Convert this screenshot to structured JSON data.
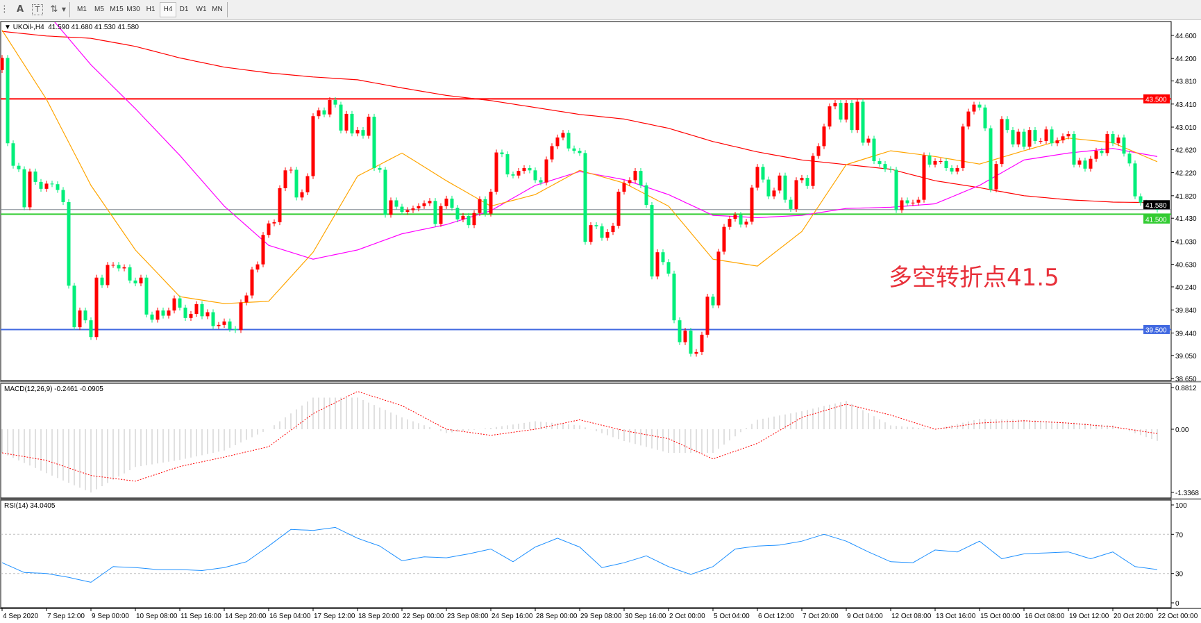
{
  "toolbar": {
    "icons": [
      "grid-template-icon",
      "text-icon",
      "text-label-icon",
      "arrows-icon"
    ],
    "text_label": "A",
    "timeframes": [
      "M1",
      "M5",
      "M15",
      "M30",
      "H1",
      "H4",
      "D1",
      "W1",
      "MN"
    ],
    "active_timeframe": "H4"
  },
  "chart": {
    "header": "UKOil-,H4  41.590 41.680 41.530 41.580",
    "symbol": "UKOil-",
    "timeframe": "H4",
    "ohlc": {
      "open": 41.59,
      "high": 41.68,
      "low": 41.53,
      "close": 41.58
    },
    "annotation": "多空转折点41.5",
    "colors": {
      "bull": "#ff0000",
      "bear": "#00ee7a",
      "ma_slow": "#ff0000",
      "ma_mid": "#ff00ff",
      "ma_fast": "#ffa500",
      "resistance": "#ff0000",
      "pivot": "#33cc33",
      "support": "#4169e1",
      "bid": "#808890"
    },
    "price_axis_labels": [
      "44.600",
      "44.200",
      "43.810",
      "43.410",
      "43.010",
      "42.620",
      "42.220",
      "41.820",
      "41.430",
      "41.030",
      "40.630",
      "40.240",
      "39.840",
      "39.440",
      "39.050",
      "38.650"
    ],
    "levels": [
      {
        "label": "43.500",
        "value": 43.5,
        "color": "#ff0000"
      },
      {
        "label": "41.580",
        "value": 41.58,
        "color": "#000000"
      },
      {
        "label": "41.500",
        "value": 41.5,
        "color": "#33cc33"
      },
      {
        "label": "39.500",
        "value": 39.5,
        "color": "#4169e1"
      }
    ],
    "time_labels": [
      "4 Sep 2020",
      "7 Sep 12:00",
      "9 Sep 00:00",
      "10 Sep 08:00",
      "11 Sep 16:00",
      "14 Sep 20:00",
      "16 Sep 04:00",
      "17 Sep 12:00",
      "18 Sep 20:00",
      "22 Sep 00:00",
      "23 Sep 08:00",
      "24 Sep 16:00",
      "28 Sep 00:00",
      "29 Sep 08:00",
      "30 Sep 16:00",
      "2 Oct 00:00",
      "5 Oct 04:00",
      "6 Oct 12:00",
      "7 Oct 20:00",
      "9 Oct 04:00",
      "12 Oct 08:00",
      "13 Oct 16:00",
      "15 Oct 00:00",
      "16 Oct 08:00",
      "19 Oct 12:00",
      "20 Oct 20:00",
      "22 Oct 00:00"
    ]
  },
  "chart_data": {
    "type": "candlestick",
    "ylim": [
      38.65,
      44.6
    ],
    "closes": [
      44.21,
      42.73,
      42.34,
      42.28,
      41.62,
      42.24,
      42.06,
      41.94,
      42.03,
      42.02,
      41.92,
      41.71,
      40.26,
      39.54,
      39.83,
      39.66,
      39.37,
      40.4,
      40.27,
      40.62,
      40.62,
      40.56,
      40.58,
      40.35,
      40.3,
      40.4,
      39.76,
      39.67,
      39.83,
      39.74,
      39.83,
      40.04,
      39.88,
      39.7,
      39.77,
      39.94,
      39.73,
      39.8,
      39.56,
      39.58,
      39.64,
      39.51,
      39.49,
      39.97,
      40.09,
      40.54,
      40.63,
      41.14,
      41.34,
      41.36,
      41.95,
      42.26,
      42.27,
      41.79,
      41.88,
      42.16,
      43.2,
      43.3,
      43.23,
      43.48,
      43.4,
      42.95,
      43.24,
      42.9,
      42.96,
      42.86,
      43.19,
      42.3,
      42.27,
      41.49,
      41.74,
      41.63,
      41.54,
      41.57,
      41.6,
      41.64,
      41.69,
      41.73,
      41.33,
      41.64,
      41.77,
      41.61,
      41.41,
      41.47,
      41.31,
      41.52,
      41.76,
      41.51,
      41.89,
      42.57,
      42.54,
      42.19,
      42.17,
      42.25,
      42.3,
      42.26,
      42.09,
      42.05,
      42.45,
      42.68,
      42.83,
      42.91,
      42.64,
      42.6,
      42.56,
      41.02,
      41.31,
      41.29,
      41.09,
      41.19,
      41.3,
      41.89,
      42.04,
      42.09,
      42.25,
      42.0,
      41.66,
      40.42,
      40.84,
      40.67,
      40.47,
      39.66,
      39.28,
      39.48,
      39.08,
      39.11,
      39.41,
      40.07,
      39.92,
      40.85,
      41.28,
      41.42,
      41.49,
      41.32,
      41.37,
      41.96,
      42.32,
      42.1,
      41.81,
      41.91,
      42.17,
      41.75,
      41.59,
      42.09,
      42.13,
      41.99,
      42.51,
      42.68,
      43.02,
      43.37,
      43.43,
      43.14,
      43.43,
      42.96,
      43.45,
      42.74,
      42.81,
      42.42,
      42.37,
      42.28,
      42.27,
      41.57,
      41.74,
      41.69,
      41.7,
      41.75,
      42.52,
      42.36,
      42.42,
      42.42,
      42.3,
      42.24,
      42.3,
      43.02,
      43.28,
      43.4,
      43.35,
      42.99,
      41.93,
      42.37,
      43.15,
      42.96,
      42.71,
      42.93,
      42.67,
      42.96,
      42.77,
      42.77,
      42.97,
      42.73,
      42.78,
      42.85,
      42.89,
      42.36,
      42.43,
      42.29,
      42.46,
      42.6,
      42.56,
      42.89,
      42.73,
      42.83,
      42.55,
      42.38,
      41.81,
      41.7,
      41.67,
      41.68,
      41.58
    ],
    "ma_slow": [
      44.67,
      44.59,
      44.55,
      44.41,
      44.21,
      44.05,
      43.95,
      43.88,
      43.83,
      43.69,
      43.56,
      43.47,
      43.35,
      43.23,
      43.15,
      42.99,
      42.76,
      42.58,
      42.44,
      42.36,
      42.28,
      42.08,
      41.96,
      41.82,
      41.75,
      41.71,
      41.7
    ],
    "ma_mid": [
      45.7,
      45.0,
      44.09,
      43.33,
      42.52,
      41.64,
      40.96,
      40.72,
      40.88,
      41.16,
      41.32,
      41.56,
      42.0,
      42.24,
      42.1,
      41.84,
      41.48,
      41.44,
      41.48,
      41.6,
      41.62,
      41.68,
      42.0,
      42.44,
      42.56,
      42.64,
      42.5
    ],
    "ma_fast": [
      44.69,
      43.49,
      42.0,
      40.88,
      40.07,
      39.95,
      39.99,
      40.84,
      42.16,
      42.56,
      42.08,
      41.64,
      41.84,
      42.26,
      42.04,
      41.64,
      40.72,
      40.6,
      41.2,
      42.36,
      42.6,
      42.5,
      42.37,
      42.6,
      42.82,
      42.74,
      42.41
    ],
    "macd": {
      "title": "MACD(12,26,9) -0.2461 -0.0905",
      "axis_labels": [
        "0.8812",
        "0.00",
        "-1.3368"
      ],
      "ylim": [
        -1.3368,
        0.8812
      ],
      "histogram": [
        -0.5,
        -0.93,
        -1.34,
        -0.8,
        -0.65,
        -0.45,
        0.0,
        0.67,
        0.67,
        0.25,
        -0.08,
        0.03,
        0.17,
        0.08,
        -0.25,
        -0.5,
        -0.5,
        0.2,
        0.38,
        0.6,
        0.08,
        0.0,
        0.22,
        0.2,
        0.15,
        0.08,
        -0.2461
      ],
      "signal": [
        -0.5,
        -0.66,
        -0.98,
        -1.1,
        -0.79,
        -0.59,
        -0.37,
        0.33,
        0.8,
        0.5,
        0.0,
        -0.13,
        0.0,
        0.2,
        -0.03,
        -0.2,
        -0.63,
        -0.3,
        0.25,
        0.53,
        0.3,
        0.0,
        0.13,
        0.18,
        0.13,
        0.05,
        -0.0905
      ]
    },
    "rsi": {
      "title": "RSI(14) 34.0405",
      "axis_labels": [
        "100",
        "70",
        "30",
        "0"
      ],
      "levels": [
        70,
        30
      ],
      "values": [
        41,
        31,
        30,
        26,
        21,
        37,
        36,
        34,
        34,
        33,
        36,
        42,
        58,
        75,
        74,
        77,
        66,
        58,
        43,
        47,
        46,
        50,
        55,
        42,
        57,
        66,
        57,
        36,
        41,
        48,
        37,
        29,
        37,
        55,
        58,
        59,
        63,
        70,
        63,
        52,
        42,
        41,
        54,
        52,
        63,
        45,
        50,
        51,
        52,
        45,
        52,
        37,
        34.04
      ]
    }
  }
}
